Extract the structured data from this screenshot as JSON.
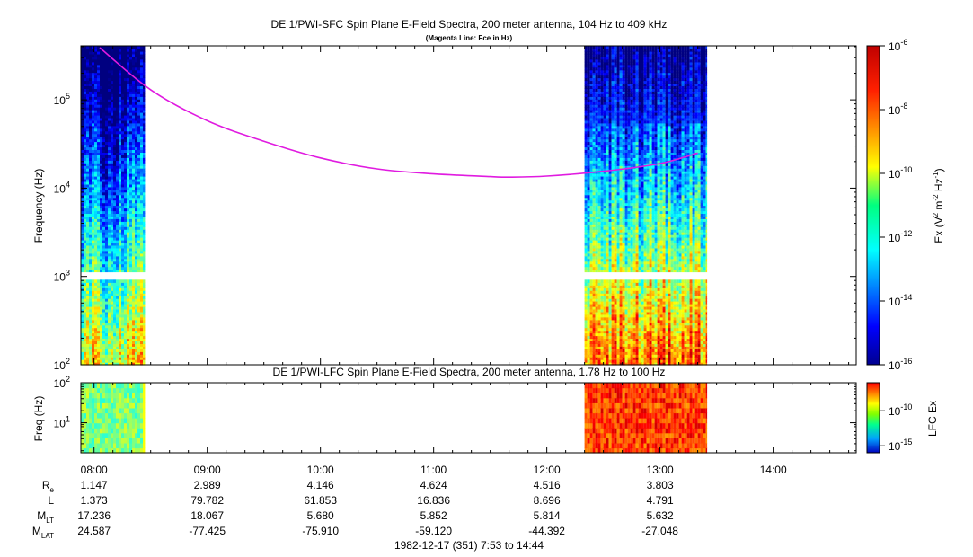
{
  "chart_data": [
    {
      "type": "heatmap",
      "title": "DE 1/PWI-SFC  Spin Plane E-Field Spectra, 200 meter antenna, 104 Hz to 409 kHz",
      "subtitle": "(Magenta Line: Fce in Hz)",
      "ylabel": "Frequency (Hz)",
      "y_scale": "log",
      "ylim": [
        100,
        409000
      ],
      "y_ticks": [
        {
          "value": 100,
          "base": "10",
          "exp": "2"
        },
        {
          "value": 1000,
          "base": "10",
          "exp": "3"
        },
        {
          "value": 10000,
          "base": "10",
          "exp": "4"
        },
        {
          "value": 100000,
          "base": "10",
          "exp": "5"
        }
      ],
      "x_start": "07:53",
      "x_end": "14:44",
      "data_intervals": [
        [
          "07:53",
          "08:27"
        ],
        [
          "12:20",
          "13:25"
        ]
      ],
      "data_gap_hz": [
        930,
        1060
      ],
      "colorbar": {
        "label": "Ex (V2 m-2 Hz-1)",
        "label_parts": [
          "Ex (V",
          "2",
          " m",
          "-2",
          " Hz",
          "-1",
          ")"
        ],
        "scale": "log",
        "range": [
          1e-16,
          1e-06
        ],
        "ticks": [
          {
            "value": 1e-06,
            "base": "10",
            "exp": "-6"
          },
          {
            "value": 1e-08,
            "base": "10",
            "exp": "-8"
          },
          {
            "value": 1e-10,
            "base": "10",
            "exp": "-10"
          },
          {
            "value": 1e-12,
            "base": "10",
            "exp": "-12"
          },
          {
            "value": 1e-14,
            "base": "10",
            "exp": "-14"
          },
          {
            "value": 1e-16,
            "base": "10",
            "exp": "-16"
          }
        ]
      },
      "series": [
        {
          "name": "Fce in Hz",
          "color": "#e01be0",
          "x": [
            "08:03",
            "08:30",
            "09:00",
            "09:30",
            "10:00",
            "10:30",
            "11:00",
            "11:30",
            "11:40",
            "12:00",
            "12:30",
            "13:00",
            "13:20"
          ],
          "y": [
            390000,
            130000,
            58000,
            34000,
            22000,
            16500,
            14500,
            13500,
            13300,
            13700,
            15500,
            19000,
            25000
          ]
        }
      ]
    },
    {
      "type": "heatmap",
      "title": "DE 1/PWI-LFC  Spin Plane E-Field Spectra, 200 meter antenna, 1.78 Hz to 100 Hz",
      "ylabel": "Freq (Hz)",
      "y_scale": "log",
      "ylim": [
        1.78,
        100
      ],
      "y_ticks": [
        {
          "value": 10,
          "base": "10",
          "exp": "1"
        },
        {
          "value": 100,
          "base": "10",
          "exp": "2"
        }
      ],
      "x_start": "07:53",
      "x_end": "14:44",
      "data_intervals": [
        [
          "07:53",
          "08:27"
        ],
        [
          "12:20",
          "13:25"
        ]
      ],
      "colorbar": {
        "label": "LFC Ex",
        "scale": "log",
        "range": [
          1e-16,
          1e-06
        ],
        "ticks": [
          {
            "value": 1e-10,
            "base": "10",
            "exp": "-10"
          },
          {
            "value": 1e-15,
            "base": "10",
            "exp": "-15"
          }
        ]
      }
    }
  ],
  "x_axis": {
    "ticks": [
      "08:00",
      "09:00",
      "10:00",
      "11:00",
      "12:00",
      "13:00",
      "14:00"
    ]
  },
  "ephemeris": {
    "rows": [
      {
        "label": "R",
        "sub": "e",
        "values": [
          "1.147",
          "2.989",
          "4.146",
          "4.624",
          "4.516",
          "3.803"
        ]
      },
      {
        "label": "L",
        "sub": "",
        "values": [
          "1.373",
          "79.782",
          "61.853",
          "16.836",
          "8.696",
          "4.791"
        ]
      },
      {
        "label": "M",
        "sub": "LT",
        "values": [
          "17.236",
          "18.067",
          "5.680",
          "5.852",
          "5.814",
          "5.632"
        ]
      },
      {
        "label": "M",
        "sub": "LAT",
        "values": [
          "24.587",
          "-77.425",
          "-75.910",
          "-59.120",
          "-44.392",
          "-27.048"
        ]
      }
    ]
  },
  "footer": "1982-12-17 (351) 7:53 to 14:44"
}
